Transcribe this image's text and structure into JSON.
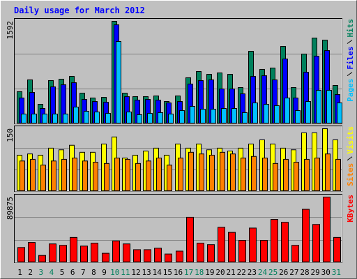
{
  "title": "Daily usage for March 2012",
  "chart_data": [
    {
      "type": "bar",
      "ylim": [
        0,
        1592
      ],
      "yticks": [
        1592
      ],
      "series": [
        {
          "name": "Hits",
          "color": "#00805c",
          "values": [
            491,
            676,
            294,
            665,
            687,
            731,
            469,
            393,
            403,
            1592,
            469,
            414,
            414,
            425,
            338,
            425,
            709,
            807,
            763,
            785,
            763,
            556,
            1123,
            840,
            861,
            1199,
            556,
            1080,
            1330,
            1298,
            589
          ]
        },
        {
          "name": "Files",
          "color": "#0000ff",
          "values": [
            393,
            480,
            229,
            567,
            600,
            632,
            371,
            338,
            327,
            1537,
            414,
            360,
            371,
            360,
            316,
            338,
            611,
            665,
            676,
            534,
            534,
            458,
            731,
            741,
            676,
            1003,
            393,
            796,
            1047,
            1134,
            447
          ]
        },
        {
          "name": "Pages",
          "color": "#00c0ff",
          "values": [
            142,
            142,
            142,
            142,
            142,
            251,
            185,
            174,
            153,
            1276,
            174,
            131,
            153,
            164,
            142,
            196,
            262,
            218,
            218,
            229,
            229,
            164,
            316,
            294,
            273,
            393,
            196,
            338,
            513,
            513,
            316
          ]
        }
      ]
    },
    {
      "type": "bar",
      "ylim": [
        0,
        150
      ],
      "yticks": [
        150
      ],
      "series": [
        {
          "name": "Visits",
          "color": "#ffff00",
          "values": [
            86,
            89,
            86,
            103,
            99,
            110,
            93,
            93,
            113,
            130,
            79,
            86,
            96,
            103,
            86,
            113,
            103,
            113,
            99,
            103,
            96,
            103,
            113,
            123,
            113,
            103,
            99,
            140,
            140,
            150,
            123
          ]
        },
        {
          "name": "Sites",
          "color": "#ff8000",
          "values": [
            72,
            76,
            62,
            72,
            76,
            79,
            72,
            69,
            66,
            79,
            76,
            66,
            72,
            79,
            62,
            79,
            93,
            89,
            86,
            93,
            89,
            79,
            83,
            79,
            66,
            76,
            69,
            76,
            79,
            89,
            76
          ]
        }
      ]
    },
    {
      "type": "bar",
      "ylim": [
        0,
        89875
      ],
      "yticks": [
        89875
      ],
      "categories": [
        "1",
        "2",
        "3",
        "4",
        "5",
        "6",
        "7",
        "8",
        "9",
        "10",
        "11",
        "12",
        "13",
        "14",
        "15",
        "16",
        "17",
        "18",
        "19",
        "20",
        "21",
        "22",
        "23",
        "24",
        "25",
        "26",
        "27",
        "28",
        "29",
        "30",
        "31"
      ],
      "category_colors": [
        "#000000",
        "#000000",
        "#00805c",
        "#00805c",
        "#000000",
        "#000000",
        "#000000",
        "#000000",
        "#000000",
        "#00805c",
        "#00805c",
        "#000000",
        "#000000",
        "#000000",
        "#000000",
        "#000000",
        "#00805c",
        "#00805c",
        "#000000",
        "#000000",
        "#000000",
        "#000000",
        "#000000",
        "#00805c",
        "#00805c",
        "#000000",
        "#000000",
        "#000000",
        "#000000",
        "#000000",
        "#00805c"
      ],
      "series": [
        {
          "name": "KBytes",
          "color": "#ff0000",
          "values": [
            19972,
            26963,
            8988,
            24965,
            22968,
            33953,
            21969,
            25963,
            11983,
            28960,
            24965,
            16976,
            16976,
            18973,
            10985,
            14979,
            61913,
            25963,
            23966,
            47933,
            40942,
            29958,
            46933,
            29958,
            58917,
            54922,
            22968,
            72898,
            51927,
            89875,
            33953
          ]
        }
      ]
    }
  ]
}
